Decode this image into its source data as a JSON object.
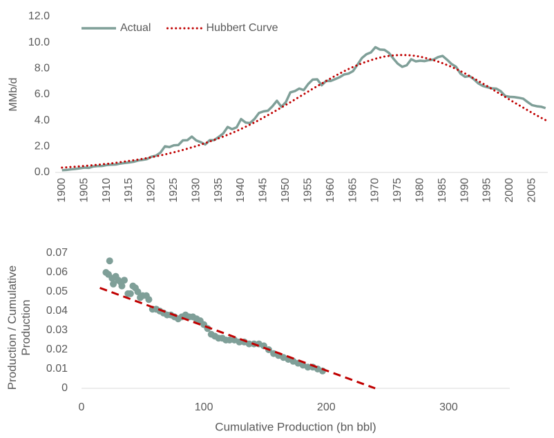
{
  "chart_data": [
    {
      "type": "line",
      "ylabel": "MMb/d",
      "legend": "upper left",
      "grid": false,
      "x": [
        1900,
        1901,
        1902,
        1903,
        1904,
        1905,
        1906,
        1907,
        1908,
        1909,
        1910,
        1911,
        1912,
        1913,
        1914,
        1915,
        1916,
        1917,
        1918,
        1919,
        1920,
        1921,
        1922,
        1923,
        1924,
        1925,
        1926,
        1927,
        1928,
        1929,
        1930,
        1931,
        1932,
        1933,
        1934,
        1935,
        1936,
        1937,
        1938,
        1939,
        1940,
        1941,
        1942,
        1943,
        1944,
        1945,
        1946,
        1947,
        1948,
        1949,
        1950,
        1951,
        1952,
        1953,
        1954,
        1955,
        1956,
        1957,
        1958,
        1959,
        1960,
        1961,
        1962,
        1963,
        1964,
        1965,
        1966,
        1967,
        1968,
        1969,
        1970,
        1971,
        1972,
        1973,
        1974,
        1975,
        1976,
        1977,
        1978,
        1979,
        1980,
        1981,
        1982,
        1983,
        1984,
        1985,
        1986,
        1987,
        1988,
        1989,
        1990,
        1991,
        1992,
        1993,
        1994,
        1995,
        1996,
        1997,
        1998,
        1999,
        2000,
        2001,
        2002,
        2003,
        2004,
        2005,
        2006,
        2007,
        2008
      ],
      "xlim": [
        1898.5,
        2008.5
      ],
      "xticks": [
        1900,
        1905,
        1910,
        1915,
        1920,
        1925,
        1930,
        1935,
        1940,
        1945,
        1950,
        1955,
        1960,
        1965,
        1970,
        1975,
        1980,
        1985,
        1990,
        1995,
        2000,
        2005
      ],
      "ylim": [
        0,
        12
      ],
      "yticks": [
        {
          "value": 0,
          "label": "0.0"
        },
        {
          "value": 2,
          "label": "2.0"
        },
        {
          "value": 4,
          "label": "4.0"
        },
        {
          "value": 6,
          "label": "6.0"
        },
        {
          "value": 8,
          "label": "8.0"
        },
        {
          "value": 10,
          "label": "10.0"
        },
        {
          "value": 12,
          "label": "12.0"
        }
      ],
      "series": [
        {
          "name": "Actual",
          "color": "#7f9f98",
          "style": "solid",
          "values": [
            0.17,
            0.19,
            0.24,
            0.27,
            0.32,
            0.37,
            0.35,
            0.46,
            0.49,
            0.5,
            0.57,
            0.6,
            0.61,
            0.68,
            0.73,
            0.77,
            0.82,
            0.92,
            0.97,
            1.03,
            1.21,
            1.29,
            1.53,
            2.01,
            1.95,
            2.09,
            2.11,
            2.47,
            2.48,
            2.76,
            2.46,
            2.33,
            2.15,
            2.48,
            2.49,
            2.73,
            3.0,
            3.5,
            3.33,
            3.47,
            4.11,
            3.84,
            3.8,
            4.12,
            4.58,
            4.7,
            4.75,
            5.09,
            5.52,
            5.05,
            5.41,
            6.16,
            6.26,
            6.46,
            6.34,
            6.81,
            7.15,
            7.17,
            6.71,
            7.05,
            7.04,
            7.18,
            7.33,
            7.54,
            7.61,
            7.8,
            8.3,
            8.81,
            9.1,
            9.24,
            9.64,
            9.46,
            9.44,
            9.21,
            8.77,
            8.37,
            8.13,
            8.25,
            8.71,
            8.55,
            8.6,
            8.57,
            8.65,
            8.69,
            8.88,
            8.97,
            8.68,
            8.35,
            8.14,
            7.61,
            7.36,
            7.42,
            7.17,
            6.85,
            6.66,
            6.56,
            6.47,
            6.45,
            6.25,
            5.88,
            5.82,
            5.8,
            5.75,
            5.68,
            5.42,
            5.18,
            5.1,
            5.06,
            4.95
          ]
        },
        {
          "name": "Hubbert Curve",
          "color": "#c00000",
          "style": "dotted",
          "values": [
            0.37,
            0.39,
            0.42,
            0.44,
            0.47,
            0.5,
            0.53,
            0.56,
            0.59,
            0.63,
            0.66,
            0.7,
            0.74,
            0.79,
            0.84,
            0.89,
            0.94,
            0.99,
            1.05,
            1.11,
            1.17,
            1.24,
            1.31,
            1.39,
            1.47,
            1.55,
            1.64,
            1.73,
            1.83,
            1.93,
            2.03,
            2.14,
            2.26,
            2.38,
            2.5,
            2.63,
            2.76,
            2.9,
            3.04,
            3.19,
            3.35,
            3.51,
            3.68,
            3.85,
            4.03,
            4.22,
            4.41,
            4.6,
            4.8,
            5.0,
            5.2,
            5.4,
            5.61,
            5.82,
            6.02,
            6.23,
            6.44,
            6.64,
            6.84,
            7.04,
            7.24,
            7.43,
            7.61,
            7.79,
            7.96,
            8.12,
            8.26,
            8.4,
            8.53,
            8.64,
            8.75,
            8.84,
            8.92,
            8.97,
            9.01,
            9.03,
            9.04,
            9.03,
            9.01,
            8.97,
            8.91,
            8.83,
            8.74,
            8.64,
            8.53,
            8.41,
            8.27,
            8.13,
            7.96,
            7.8,
            7.62,
            7.43,
            7.24,
            7.04,
            6.84,
            6.64,
            6.43,
            6.22,
            6.01,
            5.81,
            5.6,
            5.39,
            5.19,
            4.99,
            4.79,
            4.59,
            4.4,
            4.21,
            4.03
          ]
        }
      ]
    },
    {
      "type": "scatter",
      "xlabel": "Cumulative Production (bn bbl)",
      "ylabel": "Production / Cumulative Production",
      "grid": false,
      "xlim": [
        0,
        350
      ],
      "xticks": [
        0,
        100,
        200,
        300
      ],
      "ylim": [
        0,
        0.07
      ],
      "yticks": [
        0,
        0.01,
        0.02,
        0.03,
        0.04,
        0.05,
        0.06,
        0.07
      ],
      "series": [
        {
          "color": "#7f9f98",
          "style": "markers",
          "x": [
            20,
            22,
            23,
            25,
            26,
            28,
            30,
            32,
            33,
            35,
            38,
            40,
            42,
            44,
            46,
            48,
            50,
            53,
            55,
            58,
            61,
            64,
            67,
            70,
            73,
            76,
            79,
            82,
            85,
            88,
            91,
            94,
            97,
            100,
            103,
            106,
            109,
            112,
            115,
            118,
            121,
            125,
            129,
            133,
            137,
            141,
            145,
            149,
            153,
            157,
            161,
            165,
            169,
            173,
            177,
            181,
            185,
            189,
            193,
            197
          ],
          "values": [
            0.06,
            0.059,
            0.066,
            0.057,
            0.054,
            0.058,
            0.056,
            0.055,
            0.053,
            0.056,
            0.049,
            0.049,
            0.053,
            0.052,
            0.05,
            0.047,
            0.048,
            0.048,
            0.046,
            0.041,
            0.041,
            0.04,
            0.039,
            0.038,
            0.038,
            0.037,
            0.036,
            0.037,
            0.038,
            0.037,
            0.037,
            0.036,
            0.035,
            0.033,
            0.031,
            0.028,
            0.027,
            0.026,
            0.026,
            0.025,
            0.025,
            0.025,
            0.024,
            0.024,
            0.023,
            0.023,
            0.023,
            0.022,
            0.02,
            0.018,
            0.017,
            0.016,
            0.015,
            0.014,
            0.013,
            0.012,
            0.011,
            0.011,
            0.01,
            0.009
          ]
        },
        {
          "color": "#c00000",
          "style": "dashed",
          "x": [
            15,
            240
          ],
          "values": [
            0.052,
            0
          ]
        }
      ]
    }
  ]
}
